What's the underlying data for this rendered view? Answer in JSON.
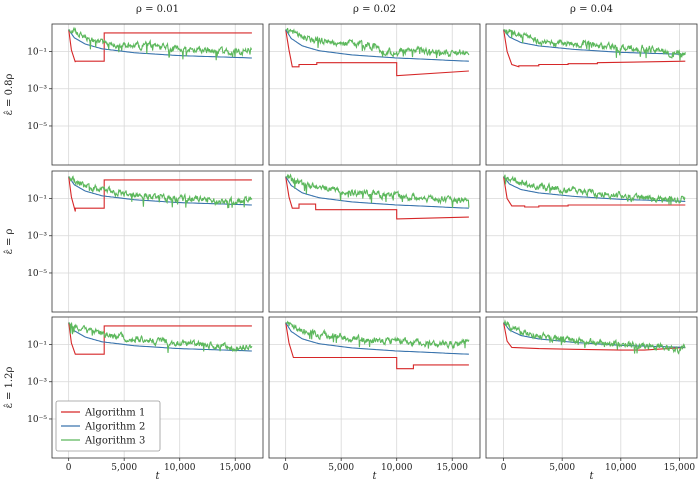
{
  "figure": {
    "column_titles": [
      "ρ = 0.01",
      "ρ = 0.02",
      "ρ = 0.04"
    ],
    "row_labels": [
      "ε̂ = 0.8ρ",
      "ε̂ = ρ",
      "ε̂ = 1.2ρ"
    ],
    "xlabel": "t",
    "legend": [
      "Algorithm 1",
      "Algorithm 2",
      "Algorithm 3"
    ],
    "colors": {
      "Algorithm 1": "#d62728",
      "Algorithm 2": "#3a74ad",
      "Algorithm 3": "#5cb85c"
    }
  },
  "chart_data": {
    "type": "line",
    "layout": "3x3 grid",
    "x_ticks": [
      0,
      5000,
      10000,
      15000
    ],
    "x_tick_labels": [
      "0",
      "5,000",
      "10,000",
      "15,000"
    ],
    "y_scale": "log",
    "y_ticks": [
      0.1,
      0.001,
      1e-05
    ],
    "y_tick_labels": [
      "10⁻¹",
      "10⁻³",
      "10⁻⁵"
    ],
    "ylim": [
      8e-08,
      3
    ],
    "grid": true,
    "legend_placement": "lower-left of bottom-left panel",
    "panels": [
      {
        "row": 0,
        "col": 0,
        "xlim": [
          -1500,
          17500
        ],
        "series": [
          {
            "name": "Algorithm 1",
            "x": [
              0,
              250,
              600,
              601,
              3200,
              3201,
              16500
            ],
            "y": [
              1.5,
              0.12,
              0.027,
              0.03,
              0.03,
              1.0,
              1.0
            ]
          },
          {
            "name": "Algorithm 2",
            "x": [
              0,
              500,
              1500,
              3000,
              6000,
              10000,
              16500
            ],
            "y": [
              1.5,
              0.55,
              0.25,
              0.14,
              0.085,
              0.06,
              0.045
            ]
          },
          {
            "name": "Algorithm 3",
            "x": [
              0,
              1500,
              3000,
              3200,
              5000,
              7500,
              10000,
              12500,
              15000,
              16500
            ],
            "y": [
              1.5,
              0.6,
              0.3,
              0.3,
              0.22,
              0.2,
              0.13,
              0.11,
              0.08,
              0.14
            ]
          }
        ]
      },
      {
        "row": 0,
        "col": 1,
        "xlim": [
          -1500,
          17500
        ],
        "series": [
          {
            "name": "Algorithm 1",
            "x": [
              0,
              300,
              600,
              1200,
              1201,
              2800,
              2801,
              10000,
              10001,
              16500
            ],
            "y": [
              1.5,
              0.12,
              0.015,
              0.015,
              0.02,
              0.02,
              0.025,
              0.025,
              0.005,
              0.009
            ]
          },
          {
            "name": "Algorithm 2",
            "x": [
              0,
              500,
              1500,
              3000,
              6000,
              10000,
              16500
            ],
            "y": [
              1.5,
              0.5,
              0.2,
              0.11,
              0.065,
              0.045,
              0.03
            ]
          },
          {
            "name": "Algorithm 3",
            "x": [
              0,
              1500,
              3000,
              5000,
              7500,
              10000,
              11000,
              12500,
              15000,
              16500
            ],
            "y": [
              1.5,
              0.6,
              0.4,
              0.28,
              0.2,
              0.08,
              0.13,
              0.1,
              0.08,
              0.11
            ]
          }
        ]
      },
      {
        "row": 0,
        "col": 2,
        "xlim": [
          -1500,
          16500
        ],
        "series": [
          {
            "name": "Algorithm 1",
            "x": [
              0,
              300,
              700,
              1300,
              1301,
              3000,
              3001,
              5500,
              5501,
              8000,
              8001,
              15500
            ],
            "y": [
              1.5,
              0.1,
              0.02,
              0.015,
              0.017,
              0.017,
              0.02,
              0.02,
              0.022,
              0.022,
              0.025,
              0.03
            ]
          },
          {
            "name": "Algorithm 2",
            "x": [
              0,
              500,
              1500,
              3000,
              6000,
              10000,
              15500
            ],
            "y": [
              1.5,
              0.6,
              0.3,
              0.2,
              0.13,
              0.09,
              0.07
            ]
          },
          {
            "name": "Algorithm 3",
            "x": [
              0,
              1500,
              3000,
              5000,
              7500,
              10000,
              12500,
              14000,
              15500
            ],
            "y": [
              1.5,
              0.7,
              0.4,
              0.3,
              0.22,
              0.16,
              0.15,
              0.09,
              0.07
            ]
          }
        ]
      },
      {
        "row": 1,
        "col": 0,
        "xlim": [
          -1500,
          17500
        ],
        "series": [
          {
            "name": "Algorithm 1",
            "x": [
              0,
              250,
              600,
              601,
              3200,
              3201,
              16500
            ],
            "y": [
              1.5,
              0.12,
              0.02,
              0.03,
              0.03,
              1.0,
              1.0
            ]
          },
          {
            "name": "Algorithm 2",
            "x": [
              0,
              500,
              1500,
              3000,
              6000,
              10000,
              16500
            ],
            "y": [
              1.5,
              0.55,
              0.25,
              0.14,
              0.085,
              0.06,
              0.045
            ]
          },
          {
            "name": "Algorithm 3",
            "x": [
              0,
              1500,
              3000,
              5000,
              7500,
              10000,
              12500,
              15000,
              16500
            ],
            "y": [
              1.5,
              0.5,
              0.3,
              0.18,
              0.12,
              0.1,
              0.08,
              0.07,
              0.08
            ]
          }
        ]
      },
      {
        "row": 1,
        "col": 1,
        "xlim": [
          -1500,
          17500
        ],
        "series": [
          {
            "name": "Algorithm 1",
            "x": [
              0,
              300,
              600,
              1200,
              1201,
              2700,
              2701,
              10000,
              10001,
              16500
            ],
            "y": [
              1.5,
              0.12,
              0.03,
              0.03,
              0.05,
              0.05,
              0.025,
              0.025,
              0.008,
              0.01
            ]
          },
          {
            "name": "Algorithm 2",
            "x": [
              0,
              500,
              1500,
              3000,
              6000,
              10000,
              16500
            ],
            "y": [
              1.5,
              0.5,
              0.2,
              0.11,
              0.065,
              0.045,
              0.03
            ]
          },
          {
            "name": "Algorithm 3",
            "x": [
              0,
              1500,
              3000,
              5000,
              7500,
              10000,
              12500,
              15000,
              16500
            ],
            "y": [
              1.5,
              0.6,
              0.4,
              0.25,
              0.18,
              0.14,
              0.1,
              0.08,
              0.09
            ]
          }
        ]
      },
      {
        "row": 1,
        "col": 2,
        "xlim": [
          -1500,
          16500
        ],
        "series": [
          {
            "name": "Algorithm 1",
            "x": [
              0,
              300,
              700,
              1800,
              1801,
              3000,
              3001,
              5500,
              5501,
              15500
            ],
            "y": [
              1.5,
              0.1,
              0.04,
              0.04,
              0.035,
              0.035,
              0.04,
              0.04,
              0.045,
              0.045
            ]
          },
          {
            "name": "Algorithm 2",
            "x": [
              0,
              500,
              1500,
              3000,
              6000,
              10000,
              15500
            ],
            "y": [
              1.5,
              0.6,
              0.3,
              0.2,
              0.13,
              0.09,
              0.07
            ]
          },
          {
            "name": "Algorithm 3",
            "x": [
              0,
              1500,
              3000,
              5000,
              7500,
              10000,
              12500,
              15500
            ],
            "y": [
              1.5,
              0.7,
              0.4,
              0.3,
              0.2,
              0.13,
              0.09,
              0.1
            ]
          }
        ]
      },
      {
        "row": 2,
        "col": 0,
        "xlim": [
          -1500,
          17500
        ],
        "series": [
          {
            "name": "Algorithm 1",
            "x": [
              0,
              250,
              600,
              601,
              3200,
              3201,
              16500
            ],
            "y": [
              1.5,
              0.12,
              0.03,
              0.03,
              0.03,
              1.0,
              1.0
            ]
          },
          {
            "name": "Algorithm 2",
            "x": [
              0,
              500,
              1500,
              3000,
              6000,
              10000,
              16500
            ],
            "y": [
              1.5,
              0.55,
              0.25,
              0.14,
              0.085,
              0.06,
              0.045
            ]
          },
          {
            "name": "Algorithm 3",
            "x": [
              0,
              1500,
              3000,
              5000,
              7500,
              10000,
              12500,
              15000,
              16500
            ],
            "y": [
              1.5,
              0.5,
              0.35,
              0.25,
              0.15,
              0.12,
              0.09,
              0.07,
              0.08
            ]
          }
        ]
      },
      {
        "row": 2,
        "col": 1,
        "xlim": [
          -1500,
          17500
        ],
        "series": [
          {
            "name": "Algorithm 1",
            "x": [
              0,
              300,
              700,
              1200,
              1201,
              10000,
              10001,
              11500,
              11501,
              16500
            ],
            "y": [
              1.5,
              0.12,
              0.02,
              0.02,
              0.02,
              0.02,
              0.005,
              0.005,
              0.008,
              0.008
            ]
          },
          {
            "name": "Algorithm 2",
            "x": [
              0,
              500,
              1500,
              3000,
              6000,
              10000,
              16500
            ],
            "y": [
              1.5,
              0.5,
              0.2,
              0.11,
              0.065,
              0.045,
              0.03
            ]
          },
          {
            "name": "Algorithm 3",
            "x": [
              0,
              1500,
              3000,
              5000,
              7500,
              10000,
              12500,
              15000,
              16500
            ],
            "y": [
              1.5,
              0.6,
              0.35,
              0.25,
              0.18,
              0.15,
              0.12,
              0.1,
              0.12
            ]
          }
        ]
      },
      {
        "row": 2,
        "col": 2,
        "xlim": [
          -1500,
          16500
        ],
        "series": [
          {
            "name": "Algorithm 1",
            "x": [
              0,
              300,
              700,
              3000,
              6000,
              10000,
              12000,
              15500
            ],
            "y": [
              1.5,
              0.15,
              0.07,
              0.06,
              0.055,
              0.05,
              0.05,
              0.07
            ]
          },
          {
            "name": "Algorithm 2",
            "x": [
              0,
              500,
              1500,
              3000,
              6000,
              10000,
              15500
            ],
            "y": [
              1.5,
              0.6,
              0.3,
              0.2,
              0.13,
              0.09,
              0.07
            ]
          },
          {
            "name": "Algorithm 3",
            "x": [
              0,
              1500,
              3000,
              5000,
              7500,
              10000,
              12500,
              15000,
              15500
            ],
            "y": [
              1.5,
              0.5,
              0.3,
              0.2,
              0.13,
              0.1,
              0.08,
              0.05,
              0.07
            ]
          }
        ]
      }
    ]
  }
}
